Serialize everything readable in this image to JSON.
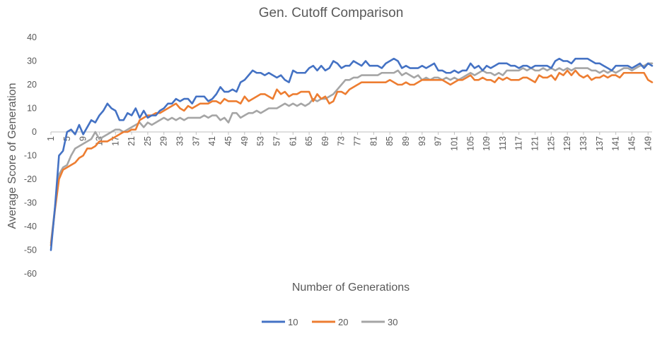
{
  "chart_data": {
    "type": "line",
    "title": "Gen. Cutoff Comparison",
    "xlabel": "Number of Generations",
    "ylabel": "Average Score of Generation",
    "ylim": [
      -60,
      40
    ],
    "yticks": [
      -60,
      -50,
      -40,
      -30,
      -20,
      -10,
      0,
      10,
      20,
      30,
      40
    ],
    "x_start": 1,
    "x_end": 150,
    "xticks": [
      1,
      5,
      9,
      13,
      17,
      21,
      25,
      29,
      33,
      37,
      41,
      45,
      49,
      53,
      57,
      61,
      65,
      69,
      73,
      77,
      81,
      85,
      89,
      93,
      97,
      101,
      105,
      109,
      113,
      117,
      121,
      125,
      129,
      133,
      137,
      141,
      145,
      149
    ],
    "grid": false,
    "legend_position": "bottom",
    "series": [
      {
        "name": "10",
        "color": "#4472C4",
        "values": [
          -50,
          -32,
          -10,
          -8,
          0,
          1,
          -1,
          3,
          -1,
          2,
          5,
          4,
          7,
          9,
          12,
          10,
          9,
          5,
          5,
          8,
          7,
          10,
          6,
          9,
          6,
          7,
          7,
          9,
          10,
          12,
          12,
          14,
          13,
          14,
          14,
          12,
          15,
          15,
          15,
          13,
          14,
          16,
          19,
          17,
          17,
          18,
          17,
          21,
          22,
          24,
          26,
          25,
          25,
          24,
          25,
          24,
          23,
          24,
          22,
          21,
          26,
          25,
          25,
          25,
          27,
          28,
          26,
          28,
          26,
          27,
          30,
          29,
          27,
          28,
          28,
          30,
          29,
          28,
          30,
          28,
          28,
          28,
          27,
          29,
          30,
          31,
          30,
          27,
          28,
          27,
          27,
          27,
          28,
          27,
          28,
          29,
          26,
          26,
          25,
          25,
          26,
          25,
          26,
          26,
          29,
          27,
          28,
          26,
          28,
          27,
          28,
          29,
          29,
          29,
          28,
          28,
          27,
          28,
          28,
          27,
          28,
          28,
          28,
          28,
          27,
          30,
          31,
          30,
          30,
          29,
          31,
          31,
          31,
          31,
          30,
          29,
          29,
          28,
          27,
          26,
          28,
          28,
          28,
          28,
          27,
          28,
          29,
          27,
          29,
          28
        ]
      },
      {
        "name": "20",
        "color": "#ED7D31",
        "values": [
          -48,
          -33,
          -20,
          -16,
          -15,
          -14,
          -13,
          -11,
          -10,
          -7,
          -7,
          -6,
          -4,
          -4,
          -4,
          -3,
          -2,
          -1,
          0,
          0,
          1,
          1,
          5,
          6,
          7,
          7,
          8,
          8,
          9,
          10,
          11,
          12,
          10,
          9,
          11,
          10,
          11,
          12,
          12,
          12,
          13,
          13,
          12,
          14,
          13,
          13,
          13,
          12,
          15,
          13,
          14,
          15,
          16,
          16,
          15,
          14,
          18,
          16,
          17,
          15,
          16,
          16,
          17,
          17,
          17,
          13,
          16,
          14,
          15,
          12,
          13,
          17,
          17,
          16,
          18,
          19,
          20,
          21,
          21,
          21,
          21,
          21,
          21,
          21,
          22,
          21,
          20,
          20,
          21,
          20,
          20,
          21,
          22,
          22,
          22,
          22,
          22,
          22,
          21,
          20,
          21,
          22,
          22,
          23,
          24,
          22,
          22,
          23,
          22,
          22,
          21,
          23,
          22,
          23,
          22,
          22,
          22,
          23,
          23,
          22,
          21,
          24,
          23,
          23,
          24,
          22,
          25,
          24,
          26,
          24,
          26,
          24,
          23,
          24,
          22,
          23,
          23,
          24,
          23,
          24,
          24,
          23,
          25,
          25,
          25,
          25,
          25,
          25,
          22,
          21
        ]
      },
      {
        "name": "30",
        "color": "#A5A5A5",
        "values": [
          -47,
          -32,
          -18,
          -15,
          -14,
          -10,
          -7,
          -6,
          -5,
          -4,
          -3,
          0,
          -3,
          -2,
          -1,
          0,
          1,
          1,
          0,
          1,
          2,
          3,
          4,
          2,
          4,
          3,
          4,
          5,
          6,
          5,
          6,
          5,
          6,
          5,
          6,
          6,
          6,
          6,
          7,
          6,
          7,
          7,
          5,
          6,
          4,
          8,
          8,
          6,
          7,
          8,
          8,
          9,
          8,
          9,
          10,
          10,
          10,
          11,
          12,
          11,
          12,
          11,
          12,
          11,
          12,
          14,
          13,
          14,
          14,
          15,
          16,
          18,
          20,
          22,
          22,
          23,
          23,
          24,
          24,
          24,
          24,
          24,
          25,
          25,
          25,
          25,
          26,
          24,
          25,
          24,
          23,
          24,
          22,
          23,
          22,
          23,
          23,
          22,
          23,
          22,
          23,
          22,
          23,
          24,
          25,
          24,
          25,
          26,
          25,
          25,
          24,
          25,
          24,
          26,
          26,
          26,
          26,
          27,
          26,
          27,
          26,
          26,
          27,
          26,
          27,
          26,
          27,
          26,
          27,
          26,
          27,
          27,
          27,
          27,
          26,
          26,
          25,
          26,
          25,
          26,
          25,
          26,
          27,
          27,
          26,
          27,
          28,
          28,
          29,
          29
        ]
      }
    ]
  }
}
